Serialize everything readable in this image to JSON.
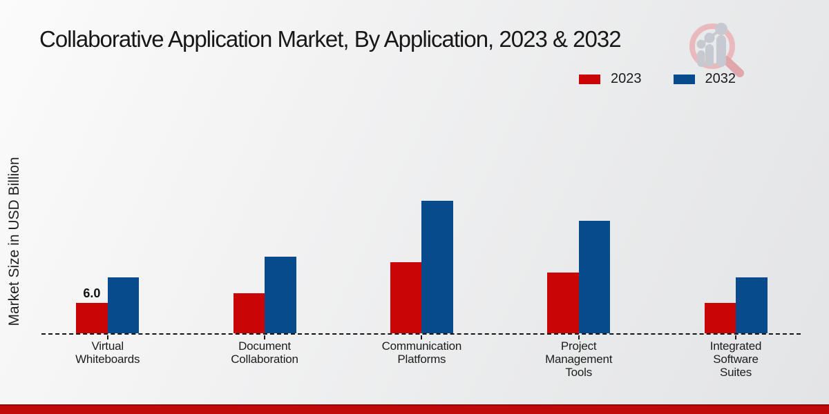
{
  "title": "Collaborative Application Market, By Application, 2023 & 2032",
  "chart_data": {
    "type": "bar",
    "title": "Collaborative Application Market, By Application, 2023 & 2032",
    "xlabel": "",
    "ylabel": "Market Size in USD Billion",
    "categories": [
      "Virtual Whiteboards",
      "Document Collaboration",
      "Communication Platforms",
      "Project Management Tools",
      "Integrated Software Suites"
    ],
    "category_label_lines": [
      [
        "Virtual",
        "Whiteboards"
      ],
      [
        "Document",
        "Collaboration"
      ],
      [
        "Communication",
        "Platforms"
      ],
      [
        "Project",
        "Management",
        "Tools"
      ],
      [
        "Integrated",
        "Software",
        "Suites"
      ]
    ],
    "series": [
      {
        "name": "2023",
        "color": "#c90505",
        "values": [
          6.0,
          7.9,
          14.0,
          12.0,
          6.0
        ]
      },
      {
        "name": "2032",
        "color": "#084b8c",
        "values": [
          11.1,
          15.1,
          26.2,
          22.2,
          11.1
        ]
      }
    ],
    "data_labels": [
      {
        "series": "2023",
        "category_index": 0,
        "text": "6.0"
      }
    ],
    "ylim": [
      0,
      30
    ],
    "grid": false,
    "legend_position": "top-right",
    "x_axis_style": "dashed-baseline"
  },
  "legend": {
    "items": [
      {
        "label": "2023",
        "color": "#c90505"
      },
      {
        "label": "2032",
        "color": "#084b8c"
      }
    ]
  },
  "colors": {
    "accent_red": "#c90505",
    "accent_blue": "#084b8c",
    "footer_strip": "#c00a0a",
    "baseline": "#141414",
    "logo_ring": "#eab9bd",
    "logo_figure": "#c6cad0"
  }
}
